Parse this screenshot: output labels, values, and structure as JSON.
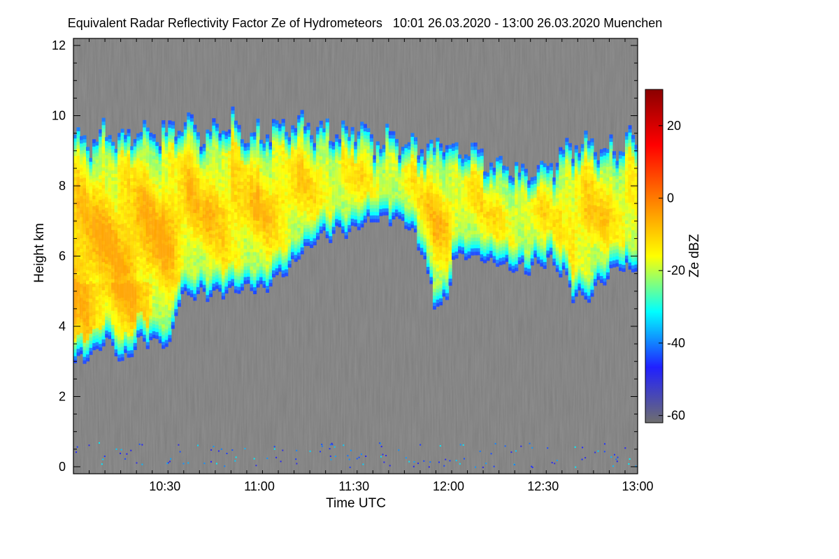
{
  "chart_data": {
    "type": "heatmap",
    "title": "Equivalent Radar Reflectivity Factor Ze of Hydrometeors   10:01 26.03.2020 - 13:00 26.03.2020 Muenchen",
    "xlabel": "Time UTC",
    "ylabel": "Height km",
    "x_start": "10:01",
    "x_end": "13:00",
    "xlim": [
      0,
      179
    ],
    "x_ticks": [
      {
        "label": "10:30",
        "value": 29
      },
      {
        "label": "11:00",
        "value": 59
      },
      {
        "label": "11:30",
        "value": 89
      },
      {
        "label": "12:00",
        "value": 119
      },
      {
        "label": "12:30",
        "value": 149
      },
      {
        "label": "13:00",
        "value": 179
      }
    ],
    "ylim": [
      -0.2,
      12.2
    ],
    "y_ticks": [
      0,
      2,
      4,
      6,
      8,
      10,
      12
    ],
    "colorbar": {
      "label": "Ze dBZ",
      "range": [
        -62,
        30
      ],
      "ticks": [
        20,
        0,
        -20,
        -40,
        -60
      ],
      "colors": [
        "#6e6e6e",
        "#2020ff",
        "#00ffff",
        "#ffff00",
        "#ff8000",
        "#ff0000",
        "#8b0000"
      ]
    },
    "no_signal_color": "#808080",
    "cloud_ze_range_dBZ": [
      -45,
      -5
    ],
    "cloud_layers": [
      {
        "x": 0,
        "top": 9.4,
        "base": 3.0
      },
      {
        "x": 5,
        "top": 9.3,
        "base": 3.2
      },
      {
        "x": 10,
        "top": 9.5,
        "base": 3.6
      },
      {
        "x": 15,
        "top": 9.3,
        "base": 3.0
      },
      {
        "x": 20,
        "top": 9.5,
        "base": 3.5
      },
      {
        "x": 25,
        "top": 9.4,
        "base": 3.6
      },
      {
        "x": 30,
        "top": 9.6,
        "base": 3.5
      },
      {
        "x": 33,
        "top": 9.8,
        "base": 4.8
      },
      {
        "x": 36,
        "top": 9.7,
        "base": 4.9
      },
      {
        "x": 40,
        "top": 9.4,
        "base": 4.9
      },
      {
        "x": 45,
        "top": 9.5,
        "base": 5.0
      },
      {
        "x": 50,
        "top": 9.7,
        "base": 5.0
      },
      {
        "x": 55,
        "top": 9.3,
        "base": 5.1
      },
      {
        "x": 60,
        "top": 9.4,
        "base": 5.0
      },
      {
        "x": 63,
        "top": 9.6,
        "base": 5.3
      },
      {
        "x": 67,
        "top": 9.7,
        "base": 5.6
      },
      {
        "x": 72,
        "top": 9.8,
        "base": 6.1
      },
      {
        "x": 76,
        "top": 9.5,
        "base": 6.4
      },
      {
        "x": 80,
        "top": 9.6,
        "base": 6.6
      },
      {
        "x": 85,
        "top": 9.4,
        "base": 6.7
      },
      {
        "x": 90,
        "top": 9.6,
        "base": 6.9
      },
      {
        "x": 95,
        "top": 9.2,
        "base": 7.0
      },
      {
        "x": 100,
        "top": 9.4,
        "base": 7.1
      },
      {
        "x": 105,
        "top": 9.1,
        "base": 6.9
      },
      {
        "x": 108,
        "top": 9.2,
        "base": 6.5
      },
      {
        "x": 111,
        "top": 9.0,
        "base": 5.9
      },
      {
        "x": 114,
        "top": 9.1,
        "base": 4.6
      },
      {
        "x": 118,
        "top": 9.2,
        "base": 4.7
      },
      {
        "x": 120,
        "top": 9.0,
        "base": 6.0
      },
      {
        "x": 125,
        "top": 9.0,
        "base": 6.0
      },
      {
        "x": 130,
        "top": 8.6,
        "base": 5.9
      },
      {
        "x": 135,
        "top": 8.6,
        "base": 5.8
      },
      {
        "x": 140,
        "top": 8.3,
        "base": 5.6
      },
      {
        "x": 145,
        "top": 8.4,
        "base": 5.7
      },
      {
        "x": 150,
        "top": 8.5,
        "base": 5.9
      },
      {
        "x": 155,
        "top": 8.8,
        "base": 5.5
      },
      {
        "x": 158,
        "top": 9.1,
        "base": 4.9
      },
      {
        "x": 162,
        "top": 9.3,
        "base": 4.8
      },
      {
        "x": 167,
        "top": 9.0,
        "base": 5.2
      },
      {
        "x": 172,
        "top": 8.9,
        "base": 5.7
      },
      {
        "x": 176,
        "top": 9.4,
        "base": 5.6
      },
      {
        "x": 179,
        "top": 9.0,
        "base": 5.8
      }
    ]
  }
}
